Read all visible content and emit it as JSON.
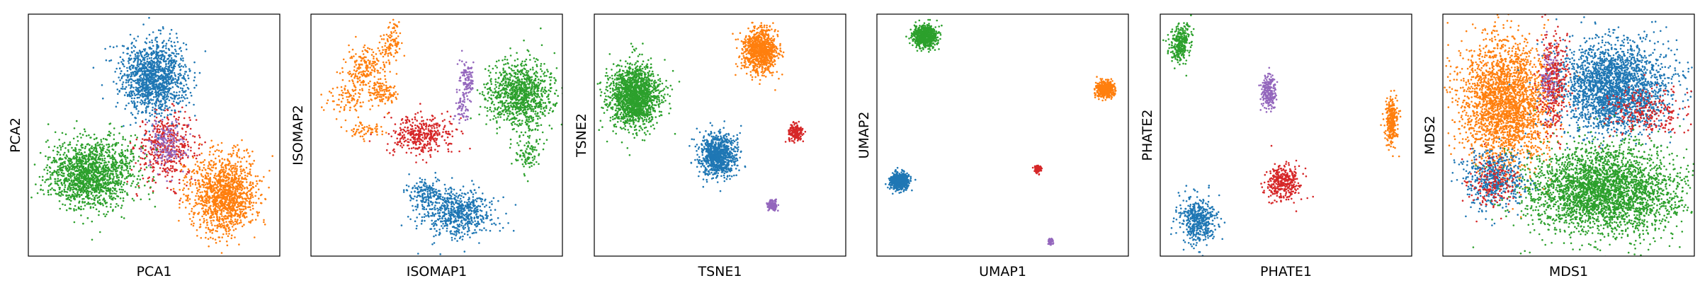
{
  "colors": {
    "blue": "#1f77b4",
    "orange": "#ff7f0e",
    "green": "#2ca02c",
    "red": "#d62728",
    "purple": "#9467bd"
  },
  "chart_data": [
    {
      "type": "scatter",
      "xlabel": "PCA1",
      "ylabel": "PCA2",
      "xlim": [
        0,
        100
      ],
      "ylim": [
        0,
        100
      ],
      "grid": false,
      "clusters": [
        {
          "color": "red",
          "center": [
            55,
            45
          ],
          "spread": [
            6,
            7
          ],
          "count": 450
        },
        {
          "color": "purple",
          "center": [
            55,
            46
          ],
          "spread": [
            4,
            5
          ],
          "count": 180
        },
        {
          "color": "blue",
          "center": [
            50,
            74
          ],
          "spread": [
            6.5,
            7.5
          ],
          "count": 1300
        },
        {
          "color": "green",
          "center": [
            25,
            34
          ],
          "spread": [
            8.5,
            7
          ],
          "count": 1500
        },
        {
          "color": "orange",
          "center": [
            78,
            25
          ],
          "spread": [
            6.5,
            8
          ],
          "count": 1300
        }
      ]
    },
    {
      "type": "scatter",
      "xlabel": "ISOMAP1",
      "ylabel": "ISOMAP2",
      "xlim": [
        0,
        100
      ],
      "ylim": [
        0,
        100
      ],
      "grid": false,
      "clusters": [
        {
          "color": "orange",
          "center": [
            22,
            78
          ],
          "spread": [
            4,
            4
          ],
          "count": 200
        },
        {
          "color": "orange",
          "center": [
            28,
            68
          ],
          "spread": [
            3,
            3
          ],
          "count": 120
        },
        {
          "color": "orange",
          "center": [
            15,
            65
          ],
          "spread": [
            4,
            3
          ],
          "count": 90
        },
        {
          "color": "orange",
          "center": [
            32,
            87
          ],
          "spread": [
            2.5,
            3
          ],
          "count": 70
        },
        {
          "color": "orange",
          "center": [
            22,
            52
          ],
          "spread": [
            4,
            2
          ],
          "count": 60
        },
        {
          "color": "orange",
          "center": [
            33,
            93
          ],
          "spread": [
            1,
            3
          ],
          "count": 25
        },
        {
          "color": "red",
          "center": [
            44,
            50
          ],
          "spread": [
            6,
            4
          ],
          "count": 380
        },
        {
          "color": "purple",
          "center": [
            62,
            72
          ],
          "spread": [
            1.5,
            4.5
          ],
          "count": 110
        },
        {
          "color": "purple",
          "center": [
            60,
            61
          ],
          "spread": [
            1.2,
            3
          ],
          "count": 50
        },
        {
          "color": "green",
          "center": [
            83,
            67
          ],
          "spread": [
            6.5,
            6.5
          ],
          "count": 1000
        },
        {
          "color": "green",
          "center": [
            86,
            44
          ],
          "spread": [
            3,
            4.5
          ],
          "count": 100
        },
        {
          "color": "blue",
          "center": [
            58,
            18
          ],
          "spread": [
            7,
            5
          ],
          "count": 650
        },
        {
          "color": "blue",
          "center": [
            45,
            26
          ],
          "spread": [
            4,
            3
          ],
          "count": 150
        }
      ]
    },
    {
      "type": "scatter",
      "xlabel": "TSNE1",
      "ylabel": "TSNE2",
      "xlim": [
        0,
        100
      ],
      "ylim": [
        0,
        100
      ],
      "grid": false,
      "clusters": [
        {
          "color": "green",
          "center": [
            16,
            66
          ],
          "spread": [
            5,
            6.5
          ],
          "count": 1600
        },
        {
          "color": "orange",
          "center": [
            66,
            85
          ],
          "spread": [
            3.4,
            4.4
          ],
          "count": 900
        },
        {
          "color": "blue",
          "center": [
            49,
            42
          ],
          "spread": [
            3.6,
            4.6
          ],
          "count": 900
        },
        {
          "color": "red",
          "center": [
            80,
            51
          ],
          "spread": [
            1.3,
            1.7
          ],
          "count": 200
        },
        {
          "color": "purple",
          "center": [
            71,
            21
          ],
          "spread": [
            0.9,
            1.1
          ],
          "count": 120
        }
      ]
    },
    {
      "type": "scatter",
      "xlabel": "UMAP1",
      "ylabel": "UMAP2",
      "xlim": [
        0,
        100
      ],
      "ylim": [
        0,
        100
      ],
      "grid": false,
      "clusters": [
        {
          "color": "green",
          "center": [
            19,
            91
          ],
          "spread": [
            2.3,
            2.3
          ],
          "count": 700
        },
        {
          "color": "orange",
          "center": [
            91,
            69
          ],
          "spread": [
            1.7,
            1.7
          ],
          "count": 500
        },
        {
          "color": "blue",
          "center": [
            9,
            31
          ],
          "spread": [
            1.8,
            1.8
          ],
          "count": 500
        },
        {
          "color": "red",
          "center": [
            64,
            36
          ],
          "spread": [
            0.7,
            0.7
          ],
          "count": 120
        },
        {
          "color": "purple",
          "center": [
            69,
            6
          ],
          "spread": [
            0.5,
            0.6
          ],
          "count": 60
        }
      ]
    },
    {
      "type": "scatter",
      "xlabel": "PHATE1",
      "ylabel": "PHATE2",
      "xlim": [
        0,
        100
      ],
      "ylim": [
        0,
        100
      ],
      "grid": false,
      "clusters": [
        {
          "color": "green",
          "center": [
            8,
            88
          ],
          "spread": [
            2,
            4
          ],
          "count": 300
        },
        {
          "color": "orange",
          "center": [
            92,
            56
          ],
          "spread": [
            1.2,
            5
          ],
          "count": 300
        },
        {
          "color": "purple",
          "center": [
            43,
            68
          ],
          "spread": [
            1.5,
            3.5
          ],
          "count": 220
        },
        {
          "color": "red",
          "center": [
            49,
            30
          ],
          "spread": [
            3.5,
            3.5
          ],
          "count": 350
        },
        {
          "color": "blue",
          "center": [
            15,
            15
          ],
          "spread": [
            3.5,
            4.5
          ],
          "count": 450
        }
      ]
    },
    {
      "type": "scatter",
      "xlabel": "MDS1",
      "ylabel": "MDS2",
      "xlim": [
        0,
        100
      ],
      "ylim": [
        0,
        100
      ],
      "grid": false,
      "clusters": [
        {
          "color": "orange",
          "center": [
            25,
            63
          ],
          "spread": [
            9,
            13
          ],
          "count": 2400
        },
        {
          "color": "blue",
          "center": [
            68,
            70
          ],
          "spread": [
            11,
            9
          ],
          "count": 2400
        },
        {
          "color": "green",
          "center": [
            64,
            27
          ],
          "spread": [
            15,
            9
          ],
          "count": 3000
        },
        {
          "color": "red",
          "center": [
            44,
            72
          ],
          "spread": [
            3,
            10
          ],
          "count": 350
        },
        {
          "color": "red",
          "center": [
            80,
            60
          ],
          "spread": [
            8,
            5
          ],
          "count": 250
        },
        {
          "color": "blue",
          "center": [
            20,
            32
          ],
          "spread": [
            6,
            6
          ],
          "count": 500
        },
        {
          "color": "red",
          "center": [
            20,
            30
          ],
          "spread": [
            5,
            5
          ],
          "count": 180
        },
        {
          "color": "purple",
          "center": [
            42,
            74
          ],
          "spread": [
            2,
            7
          ],
          "count": 80
        }
      ]
    }
  ]
}
